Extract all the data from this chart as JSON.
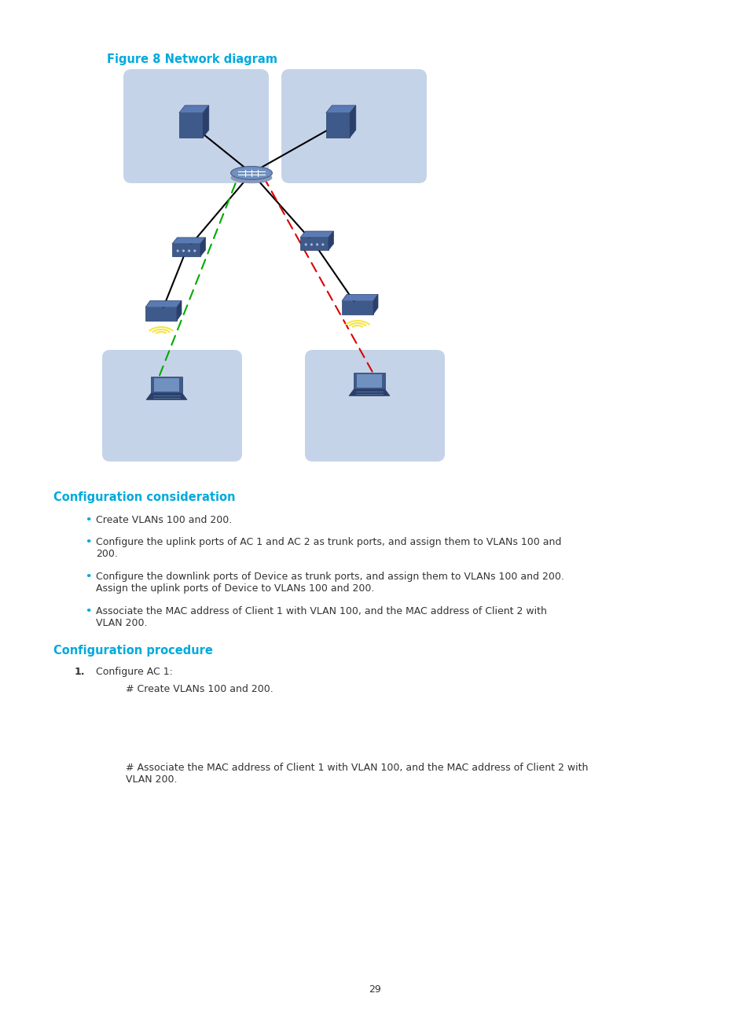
{
  "title": "Figure 8 Network diagram",
  "title_color": "#00AADD",
  "title_fontsize": 10.5,
  "bg_color": "#FFFFFF",
  "page_number": "29",
  "heading1": "Configuration consideration",
  "heading1_color": "#00AADD",
  "heading2": "Configuration procedure",
  "heading2_color": "#00AADD",
  "bullet_color": "#00AADD",
  "bullets": [
    "Create VLANs 100 and 200.",
    "Configure the uplink ports of AC 1 and AC 2 as trunk ports, and assign them to VLANs 100 and\n200.",
    "Configure the downlink ports of Device as trunk ports, and assign them to VLANs 100 and 200.\nAssign the uplink ports of Device to VLANs 100 and 200.",
    "Associate the MAC address of Client 1 with VLAN 100, and the MAC address of Client 2 with\nVLAN 200."
  ],
  "procedure_item": "Configure AC 1:",
  "procedure_sub1": "# Create VLANs 100 and 200.",
  "procedure_sub2": "# Associate the MAC address of Client 1 with VLAN 100, and the MAC address of Client 2 with\nVLAN 200.",
  "text_color": "#333333",
  "text_fontsize": 9.0,
  "box_color": "#C5D3E8",
  "device_color": "#3D5A8A",
  "device_dark": "#2a3f6a",
  "device_mid": "#5a7ab5",
  "device_light": "#7090c0",
  "router_color": "#5a7ab5",
  "wifi_color": "#F5E642",
  "green_arrow": "#00AA00",
  "red_arrow": "#DD0000"
}
